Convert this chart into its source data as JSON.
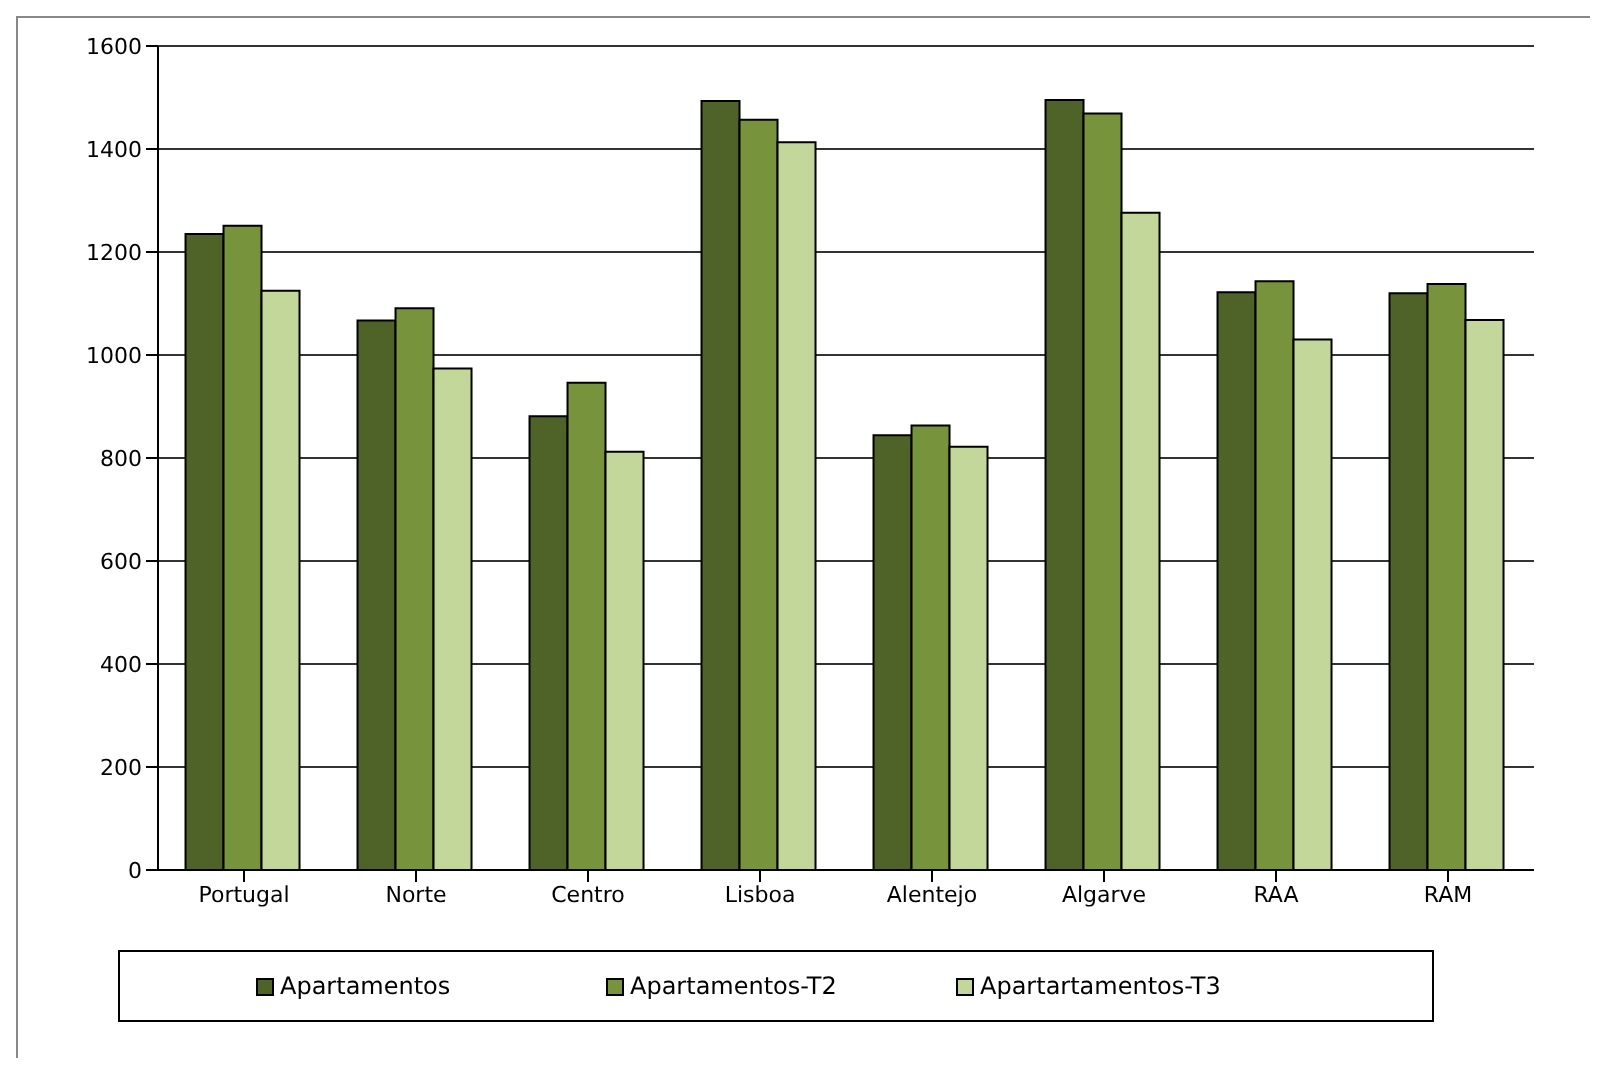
{
  "chart_data": {
    "type": "bar",
    "categories": [
      "Portugal",
      "Norte",
      "Centro",
      "Lisboa",
      "Alentejo",
      "Algarve",
      "RAA",
      "RAM"
    ],
    "series": [
      {
        "name": "Apartamentos",
        "color": "#4f6228",
        "values": [
          1235,
          1067,
          881,
          1493,
          844,
          1495,
          1122,
          1120
        ]
      },
      {
        "name": "Apartamentos-T2",
        "color": "#77933c",
        "values": [
          1251,
          1091,
          946,
          1457,
          863,
          1469,
          1143,
          1138
        ]
      },
      {
        "name": "Apartartamentos-T3",
        "color": "#c4d79b",
        "values": [
          1125,
          974,
          812,
          1413,
          822,
          1276,
          1030,
          1068
        ]
      }
    ],
    "ylim": [
      0,
      1600
    ],
    "yticks": [
      0,
      200,
      400,
      600,
      800,
      1000,
      1200,
      1400,
      1600
    ],
    "grid": "y",
    "legend": "bottom"
  }
}
